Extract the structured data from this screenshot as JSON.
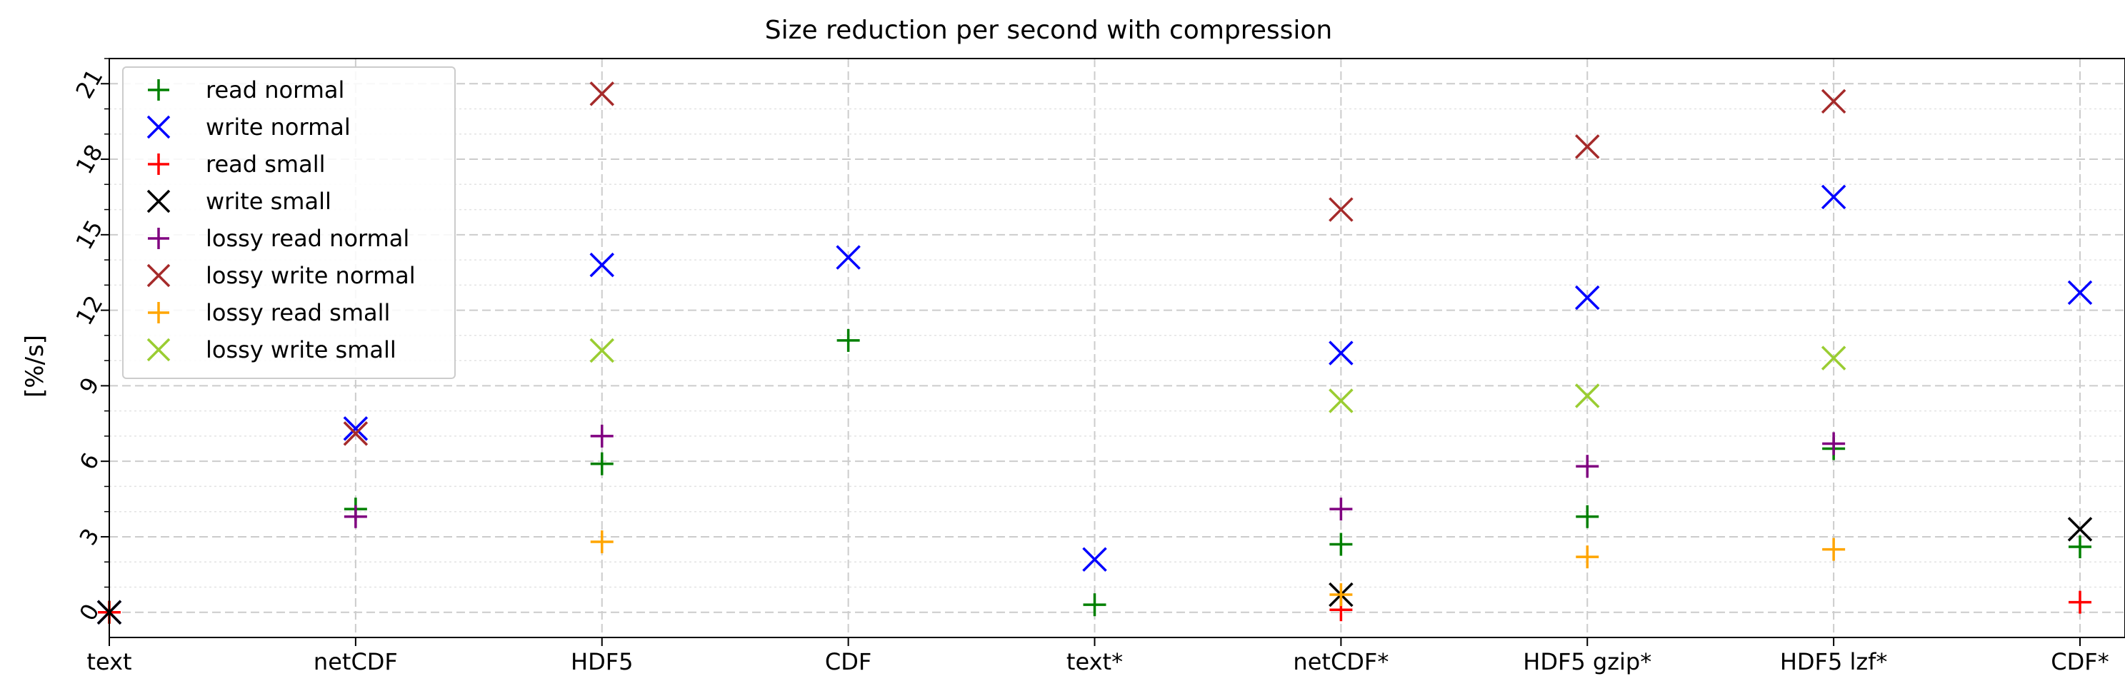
{
  "chart_data": {
    "type": "scatter",
    "title": "Size reduction per second with compression",
    "xlabel": "",
    "ylabel": "[%/s]",
    "categories": [
      "text",
      "netCDF",
      "HDF5",
      "CDF",
      "text*",
      "netCDF*",
      "HDF5 gzip*",
      "HDF5 lzf*",
      "CDF*"
    ],
    "ylim": [
      -1,
      22
    ],
    "yticks": [
      0,
      3,
      6,
      9,
      12,
      15,
      18,
      21
    ],
    "grid": {
      "major": true,
      "minor": true
    },
    "legend_position": "top-left",
    "series": [
      {
        "name": "read normal",
        "marker": "+",
        "color": "#008000",
        "values": [
          0,
          4.1,
          5.9,
          10.8,
          0.3,
          2.7,
          3.8,
          6.5,
          2.6
        ]
      },
      {
        "name": "write normal",
        "marker": "x",
        "color": "#0000ff",
        "values": [
          0,
          7.3,
          13.8,
          14.1,
          2.1,
          10.3,
          12.5,
          16.5,
          12.7
        ]
      },
      {
        "name": "read small",
        "marker": "+",
        "color": "#ff0000",
        "values": [
          0,
          null,
          null,
          null,
          null,
          0.1,
          null,
          null,
          0.4
        ]
      },
      {
        "name": "write small",
        "marker": "x",
        "color": "#000000",
        "values": [
          0,
          null,
          null,
          null,
          null,
          0.7,
          null,
          null,
          3.3
        ]
      },
      {
        "name": "lossy read normal",
        "marker": "+",
        "color": "#800080",
        "values": [
          null,
          3.8,
          7.0,
          null,
          null,
          4.1,
          5.8,
          6.7,
          null
        ]
      },
      {
        "name": "lossy write normal",
        "marker": "x",
        "color": "#a52a2a",
        "values": [
          null,
          7.1,
          20.6,
          null,
          null,
          16.0,
          18.5,
          20.3,
          null
        ]
      },
      {
        "name": "lossy read small",
        "marker": "+",
        "color": "#ffa500",
        "values": [
          null,
          null,
          2.8,
          null,
          null,
          0.7,
          2.2,
          2.5,
          null
        ]
      },
      {
        "name": "lossy write small",
        "marker": "x",
        "color": "#9acd32",
        "values": [
          null,
          null,
          10.4,
          null,
          null,
          8.4,
          8.6,
          10.1,
          null
        ]
      }
    ]
  }
}
